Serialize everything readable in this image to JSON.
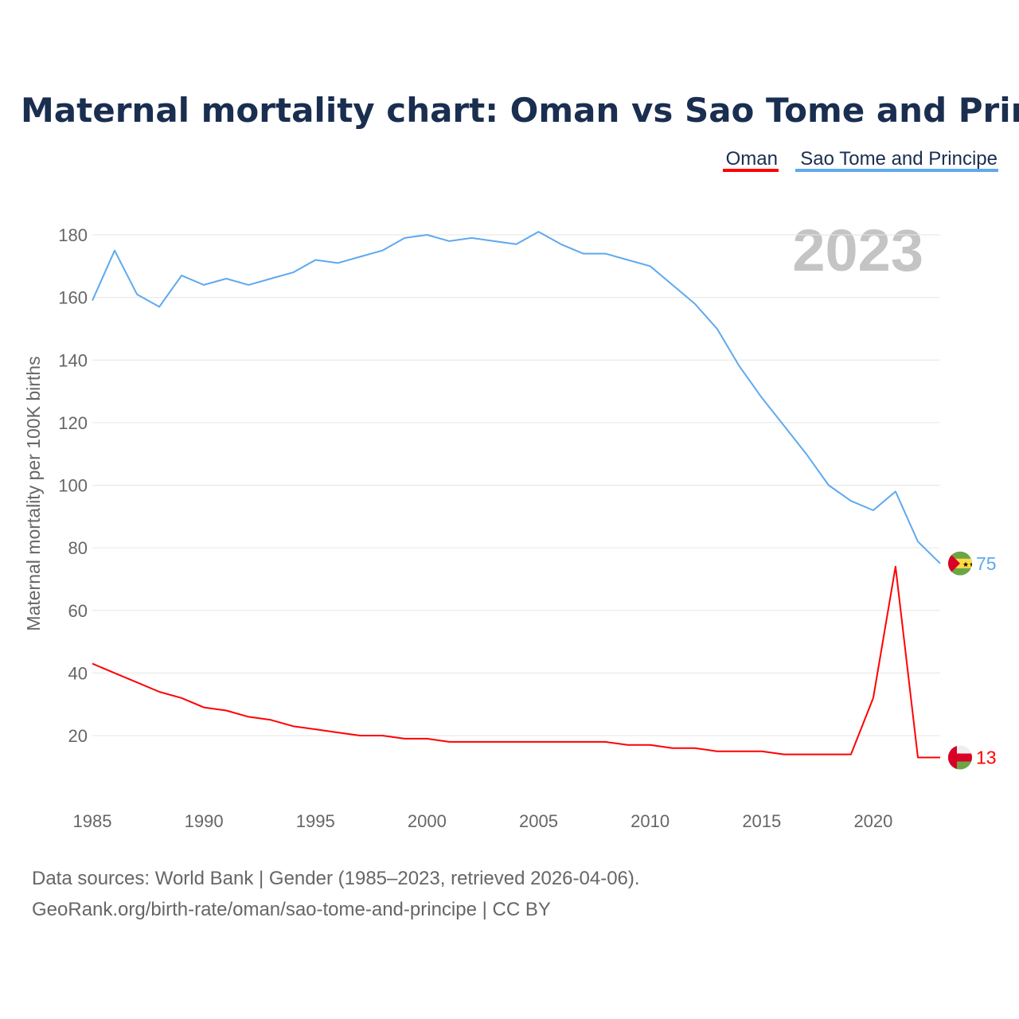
{
  "title": "Maternal mortality chart: Oman vs Sao Tome and Principe",
  "year_label": "2023",
  "footer": {
    "line1": "Data sources: World Bank | Gender (1985–2023, retrieved 2026-04-06).",
    "line2": "GeoRank.org/birth-rate/oman/sao-tome-and-principe | CC BY"
  },
  "chart_data": {
    "type": "line",
    "title": "Maternal mortality chart: Oman vs Sao Tome and Principe",
    "xlabel": "",
    "ylabel": "Maternal mortality per 100K births",
    "xlim": [
      1985,
      2023
    ],
    "ylim": [
      0,
      190
    ],
    "x_ticks": [
      1985,
      1990,
      1995,
      2000,
      2005,
      2010,
      2015,
      2020
    ],
    "y_ticks": [
      20,
      40,
      60,
      80,
      100,
      120,
      140,
      160,
      180
    ],
    "grid": true,
    "legend_placement": "top-right",
    "x": [
      1985,
      1986,
      1987,
      1988,
      1989,
      1990,
      1991,
      1992,
      1993,
      1994,
      1995,
      1996,
      1997,
      1998,
      1999,
      2000,
      2001,
      2002,
      2003,
      2004,
      2005,
      2006,
      2007,
      2008,
      2009,
      2010,
      2011,
      2012,
      2013,
      2014,
      2015,
      2016,
      2017,
      2018,
      2019,
      2020,
      2021,
      2022,
      2023
    ],
    "series": [
      {
        "name": "Oman",
        "color": "#ff0000",
        "end_label": "13",
        "values": [
          43,
          40,
          37,
          34,
          32,
          29,
          28,
          26,
          25,
          23,
          22,
          21,
          20,
          20,
          19,
          19,
          18,
          18,
          18,
          18,
          18,
          18,
          18,
          18,
          17,
          17,
          16,
          16,
          15,
          15,
          15,
          14,
          14,
          14,
          14,
          32,
          74,
          13,
          13
        ]
      },
      {
        "name": "Sao Tome and Principe",
        "color": "#5ea9ee",
        "end_label": "75",
        "values": [
          159,
          175,
          161,
          157,
          167,
          164,
          166,
          164,
          166,
          168,
          172,
          171,
          173,
          175,
          179,
          180,
          178,
          179,
          178,
          177,
          181,
          177,
          174,
          174,
          172,
          170,
          164,
          158,
          150,
          138,
          128,
          119,
          110,
          100,
          95,
          92,
          98,
          82,
          75
        ]
      }
    ]
  }
}
